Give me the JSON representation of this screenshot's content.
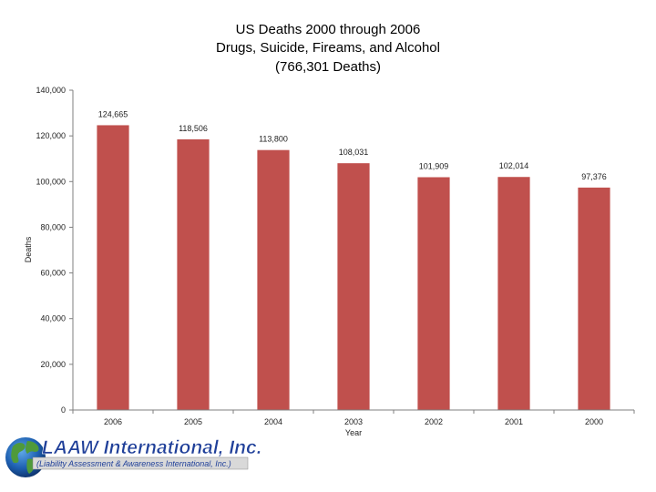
{
  "chart_data": {
    "type": "bar",
    "title_lines": [
      "US Deaths 2000 through 2006",
      "Drugs, Suicide, Fireams, and Alcohol",
      "(766,301 Deaths)"
    ],
    "xlabel": "Year",
    "ylabel": "Deaths",
    "categories": [
      "2006",
      "2005",
      "2004",
      "2003",
      "2002",
      "2001",
      "2000"
    ],
    "values": [
      124665,
      118506,
      113800,
      108031,
      101909,
      102014,
      97376
    ],
    "data_labels": [
      "124,665",
      "118,506",
      "113,800",
      "108,031",
      "101,909",
      "102,014",
      "97,376"
    ],
    "yticks": [
      0,
      20000,
      40000,
      60000,
      80000,
      100000,
      120000,
      140000
    ],
    "ytick_labels": [
      "0",
      "20,000",
      "40,000",
      "60,000",
      "80,000",
      "100,000",
      "120,000",
      "140,000"
    ],
    "ylim": [
      0,
      140000
    ],
    "grid": false,
    "legend": "none",
    "bar_color": "#c0504d"
  },
  "logo": {
    "title": "LAAW International, Inc.",
    "subtitle": "(Liability Assessment & Awareness International, Inc.)",
    "primary_color": "#1f3f99",
    "icon": "globe-icon"
  }
}
